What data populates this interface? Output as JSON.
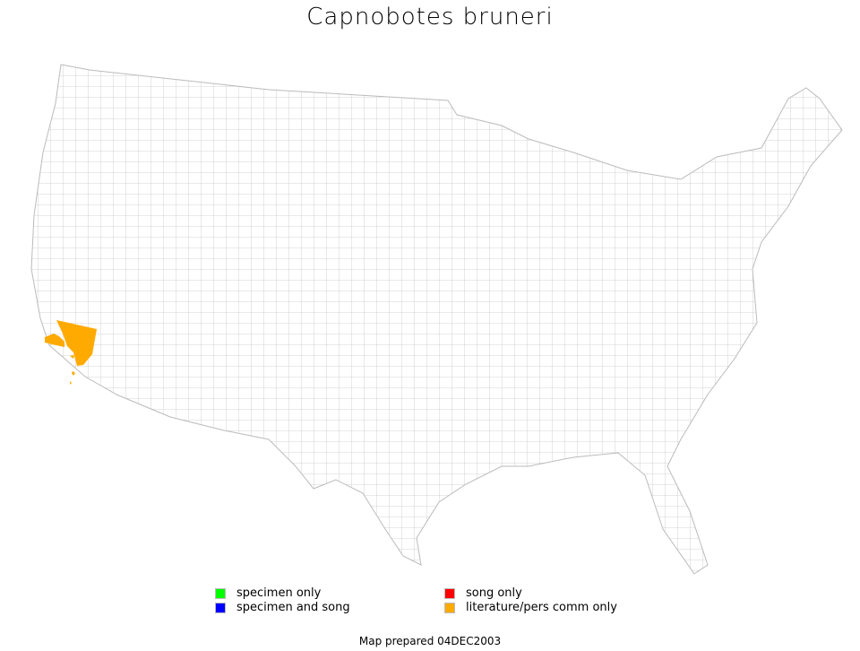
{
  "title": "Capnobotes bruneri",
  "legend": [
    {
      "label": "specimen only",
      "color": "#00ff00"
    },
    {
      "label": "specimen and song",
      "color": "#0000ff"
    },
    {
      "label": "song only",
      "color": "#ff0000"
    },
    {
      "label": "literature/pers comm only",
      "color": "#ffaa00"
    }
  ],
  "highlight_color": "#ffaa00",
  "footer": "Map prepared 04DEC2003"
}
